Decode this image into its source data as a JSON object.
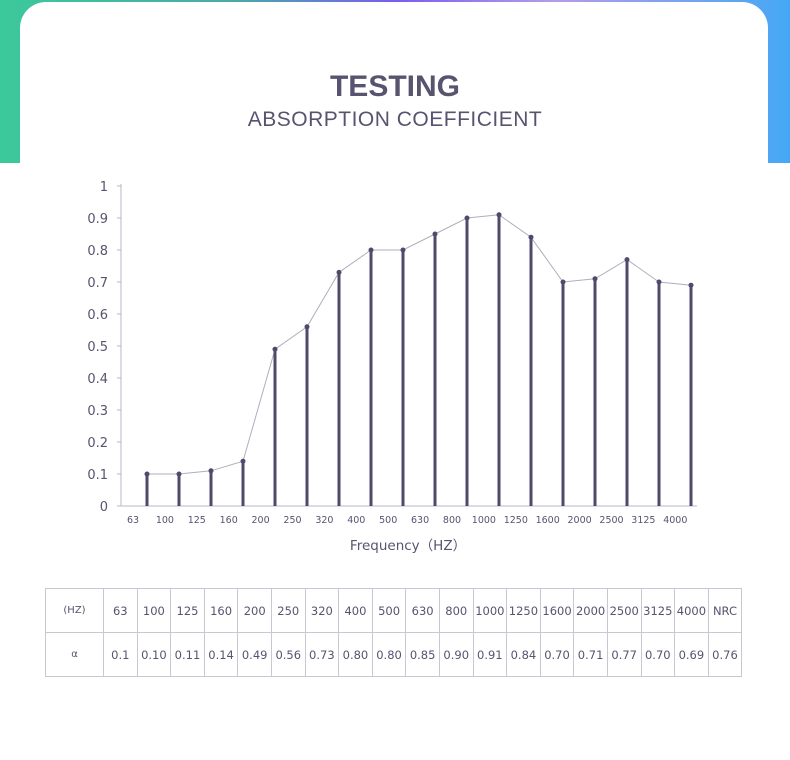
{
  "header": {
    "title": "TESTING",
    "subtitle": "ABSORPTION COEFFICIENT"
  },
  "chart_data": {
    "type": "line",
    "xlabel": "Frequency（HZ）",
    "ylabel": "",
    "categories": [
      "63",
      "100",
      "125",
      "160",
      "200",
      "250",
      "320",
      "400",
      "500",
      "630",
      "800",
      "1000",
      "1250",
      "1600",
      "2000",
      "2500",
      "3125",
      "4000"
    ],
    "values": [
      0.1,
      0.1,
      0.11,
      0.14,
      0.49,
      0.56,
      0.73,
      0.8,
      0.8,
      0.85,
      0.9,
      0.91,
      0.84,
      0.7,
      0.71,
      0.77,
      0.7,
      0.69
    ],
    "yticks": [
      "0",
      "0.1",
      "0.2",
      "0.3",
      "0.4",
      "0.5",
      "0.6",
      "0.7",
      "0.8",
      "0.9",
      "1"
    ],
    "ylim": [
      0,
      1
    ],
    "grid": false,
    "colors": {
      "stem": "#4f4a6b",
      "line": "#b0aebb",
      "axis": "#b8b6c4"
    }
  },
  "table": {
    "header_label": "(HZ)",
    "row_label": "α",
    "frequencies": [
      "63",
      "100",
      "125",
      "160",
      "200",
      "250",
      "320",
      "400",
      "500",
      "630",
      "800",
      "1000",
      "1250",
      "1600",
      "2000",
      "2500",
      "3125",
      "4000",
      "NRC"
    ],
    "coefficients": [
      "0.1",
      "0.10",
      "0.11",
      "0.14",
      "0.49",
      "0.56",
      "0.73",
      "0.80",
      "0.80",
      "0.85",
      "0.90",
      "0.91",
      "0.84",
      "0.70",
      "0.71",
      "0.77",
      "0.70",
      "0.69",
      "0.76"
    ]
  }
}
